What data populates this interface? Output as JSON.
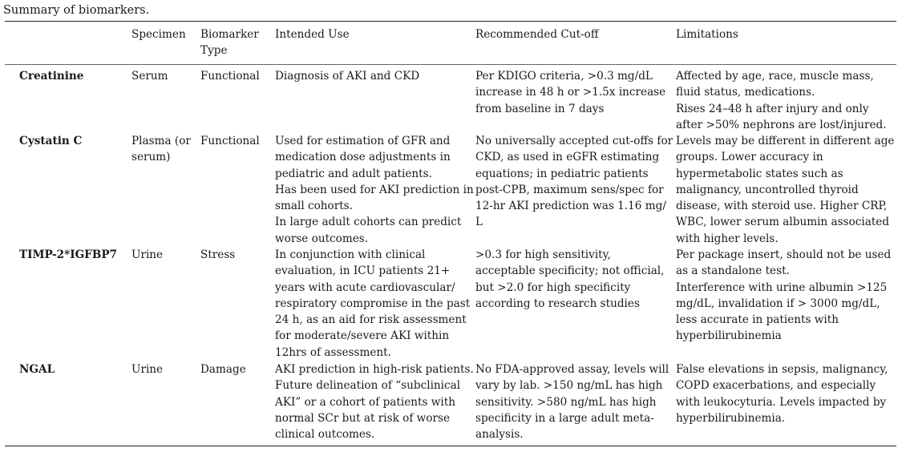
{
  "caption": "Summary of biomarkers.",
  "table": {
    "headers": [
      [
        ""
      ],
      [
        "Specimen"
      ],
      [
        "Biomarker",
        "Type"
      ],
      [
        "Intended Use"
      ],
      [
        "Recommended Cut-off"
      ],
      [
        "Limitations"
      ]
    ],
    "rows": [
      {
        "name": [
          "Creatinine"
        ],
        "specimen": [
          "Serum"
        ],
        "type": [
          "Functional"
        ],
        "use": [
          "Diagnosis of AKI and CKD"
        ],
        "cutoff": [
          "Per KDIGO criteria, >0.3 mg/dL",
          "increase in 48 h or >1.5x increase",
          "from baseline in 7 days"
        ],
        "limitations": [
          "Affected by age, race, muscle mass,",
          "fluid status, medications.",
          "Rises 24–48 h after injury and only",
          "after >50% nephrons are lost/injured."
        ]
      },
      {
        "name": [
          "Cystatin C"
        ],
        "specimen": [
          "Plasma (or",
          "serum)"
        ],
        "type": [
          "Functional"
        ],
        "use": [
          "Used for estimation of GFR and",
          "medication dose adjustments in",
          "pediatric and adult patients.",
          "Has been used for AKI prediction in",
          "small cohorts.",
          "In large adult cohorts can predict",
          "worse outcomes."
        ],
        "cutoff": [
          "No universally accepted cut-offs for",
          "CKD, as used in eGFR estimating",
          "equations; in pediatric patients",
          "post-CPB, maximum sens/spec for",
          "12-hr AKI prediction was 1.16 mg/",
          "L"
        ],
        "limitations": [
          "Levels may be different in different age",
          "groups. Lower accuracy in",
          "hypermetabolic states such as",
          "malignancy, uncontrolled thyroid",
          "disease, with steroid use. Higher CRP,",
          "WBC, lower serum albumin associated",
          "with higher levels."
        ]
      },
      {
        "name": [
          "TIMP-2*IGFBP7"
        ],
        "specimen": [
          "Urine"
        ],
        "type": [
          "Stress"
        ],
        "use": [
          "In conjunction with clinical",
          "evaluation, in ICU patients 21+",
          "years with acute cardiovascular/",
          "respiratory compromise in the past",
          "24 h, as an aid for risk assessment",
          "for moderate/severe AKI within",
          "12hrs of assessment."
        ],
        "cutoff": [
          ">0.3 for high sensitivity,",
          "acceptable specificity; not official,",
          "but >2.0 for high specificity",
          "according to research studies"
        ],
        "limitations": [
          "Per package insert, should not be used",
          "as a standalone test.",
          "Interference with urine albumin >125",
          "mg/dL, invalidation if > 3000 mg/dL,",
          "less accurate in patients with",
          "hyperbilirubinemia"
        ]
      },
      {
        "name": [
          "NGAL"
        ],
        "specimen": [
          "Urine"
        ],
        "type": [
          "Damage"
        ],
        "use": [
          "AKI prediction in high-risk patients.",
          "Future delineation of “subclinical",
          "AKI” or a cohort of patients with",
          "normal SCr but at risk of worse",
          "clinical outcomes."
        ],
        "cutoff": [
          "No FDA-approved assay, levels will",
          "vary by lab. >150 ng/mL has high",
          "sensitivity. >580 ng/mL has high",
          "specificity in a large adult meta-",
          "analysis."
        ],
        "limitations": [
          "False elevations in sepsis, malignancy,",
          "COPD exacerbations, and especially",
          "with leukocyturia. Levels impacted by",
          "hyperbilirubinemia."
        ]
      }
    ]
  }
}
